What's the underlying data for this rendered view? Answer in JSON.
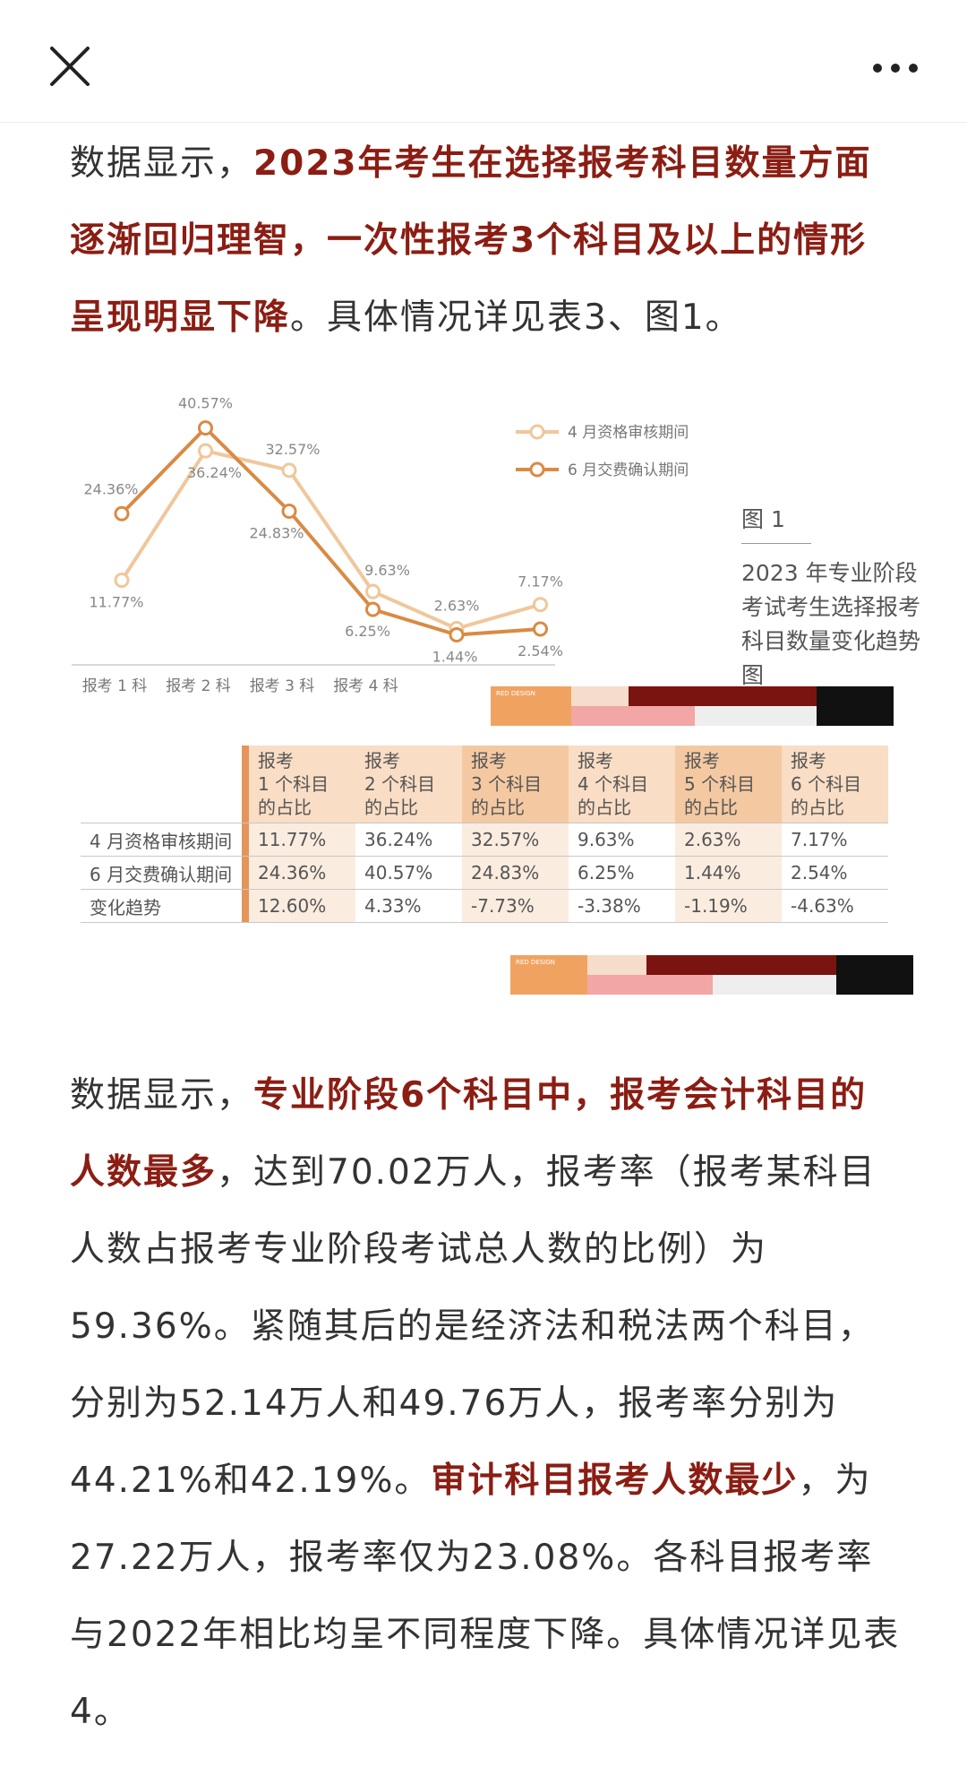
{
  "colors": {
    "highlight": "#8b1d13",
    "series_april": "#f0c79b",
    "series_june": "#d98a43",
    "table_accent": "#e3955b"
  },
  "topbar": {
    "close_icon": "close-icon",
    "more_icon": "more-icon"
  },
  "para1": {
    "pre": "数据显示，",
    "highlight": "2023年考生在选择报考科目数量方面逐渐回归理智，一次性报考3个科目及以上的情形呈现明显下降",
    "post": "。具体情况详见表3、图1。"
  },
  "figure": {
    "caption_num": "图 1",
    "caption_text": "2023 年专业阶段考试考生选择报考科目数量变化趋势图",
    "brand_label": "RED DESIGN"
  },
  "chart_data": {
    "type": "line",
    "categories": [
      "报考 1 科",
      "报考 2 科",
      "报考 3 科",
      "报考 4 科",
      "",
      ""
    ],
    "series": [
      {
        "name": "4 月资格审核期间",
        "values": [
          11.77,
          36.24,
          32.57,
          9.63,
          2.63,
          7.17
        ],
        "labels": [
          "11.77%",
          "36.24%",
          "32.57%",
          "9.63%",
          "2.63%",
          "7.17%"
        ]
      },
      {
        "name": "6 月交费确认期间",
        "values": [
          24.36,
          40.57,
          24.83,
          6.25,
          1.44,
          2.54
        ],
        "labels": [
          "24.36%",
          "40.57%",
          "24.83%",
          "6.25%",
          "1.44%",
          "2.54%"
        ]
      }
    ],
    "ylim": [
      0,
      45
    ],
    "legend_position": "top-right",
    "grid": false
  },
  "table": {
    "headers": [
      [
        "报考",
        "1 个科目",
        "的占比"
      ],
      [
        "报考",
        "2 个科目",
        "的占比"
      ],
      [
        "报考",
        "3 个科目",
        "的占比"
      ],
      [
        "报考",
        "4 个科目",
        "的占比"
      ],
      [
        "报考",
        "5 个科目",
        "的占比"
      ],
      [
        "报考",
        "6 个科目",
        "的占比"
      ]
    ],
    "rows": [
      {
        "label": "4 月资格审核期间",
        "cells": [
          "11.77%",
          "36.24%",
          "32.57%",
          "9.63%",
          "2.63%",
          "7.17%"
        ]
      },
      {
        "label": "6 月交费确认期间",
        "cells": [
          "24.36%",
          "40.57%",
          "24.83%",
          "6.25%",
          "1.44%",
          "2.54%"
        ]
      },
      {
        "label": "变化趋势",
        "cells": [
          "12.60%",
          "4.33%",
          "-7.73%",
          "-3.38%",
          "-1.19%",
          "-4.63%"
        ]
      }
    ]
  },
  "para2": {
    "s1": "数据显示，",
    "h1": "专业阶段6个科目中，报考会计科目的人数最多",
    "s2": "，达到70.02万人，报考率（报考某科目人数占报考专业阶段考试总人数的比例）为59.36%。紧随其后的是经济法和税法两个科目，分别为52.14万人和49.76万人，报考率分别为44.21%和42.19%。",
    "h2": "审计科目报考人数最少",
    "s3": "，为27.22万人，报考率仅为23.08%。各科目报考率与2022年相比均呈不同程度下降。具体情况详见表4。"
  }
}
